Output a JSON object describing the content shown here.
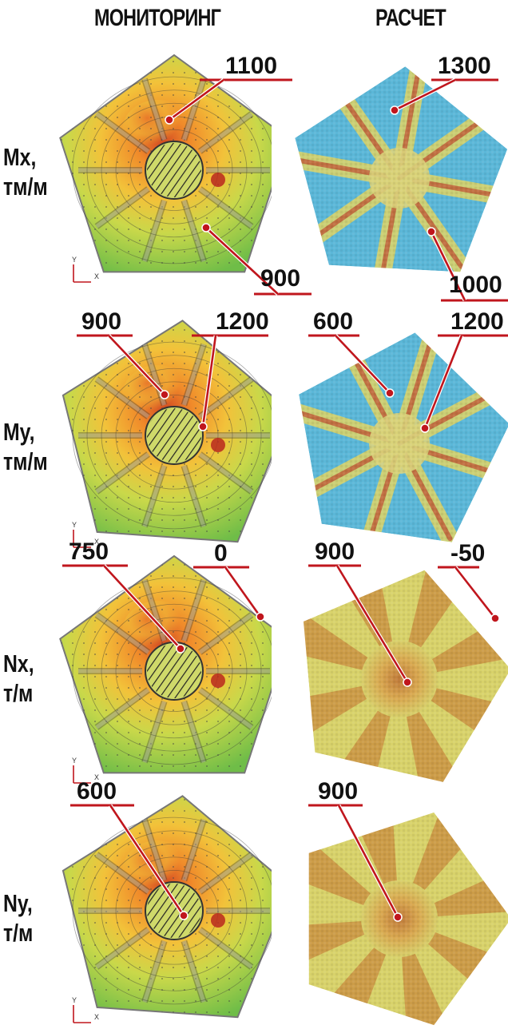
{
  "headers": {
    "left": "МОНИТОРИНГ",
    "right": "РАСЧЕТ"
  },
  "rows": [
    {
      "label_line1": "Mx,",
      "label_line2": "тм/м",
      "monitoring_callouts": [
        "1100",
        "900"
      ],
      "calculation_callouts": [
        "1300",
        "1000"
      ]
    },
    {
      "label_line1": "My,",
      "label_line2": "тм/м",
      "monitoring_callouts": [
        "900",
        "1200"
      ],
      "calculation_callouts": [
        "600",
        "1200"
      ]
    },
    {
      "label_line1": "Nx,",
      "label_line2": "т/м",
      "monitoring_callouts": [
        "750",
        "0"
      ],
      "calculation_callouts": [
        "900",
        "-50"
      ]
    },
    {
      "label_line1": "Ny,",
      "label_line2": "т/м",
      "monitoring_callouts": [
        "600"
      ],
      "calculation_callouts": [
        "900"
      ]
    }
  ],
  "axis_labels": {
    "x": "X",
    "y": "Y"
  },
  "colors": {
    "callout_line": "#c0161d",
    "callout_dot": "#c0161d",
    "monitor_green": "#7cc24a",
    "monitor_yellow": "#e9e04a",
    "monitor_orange": "#f0a030",
    "calc_blue": "#5bb7d8",
    "calc_yellow": "#d8d26a",
    "calc_red": "#c0603a"
  }
}
